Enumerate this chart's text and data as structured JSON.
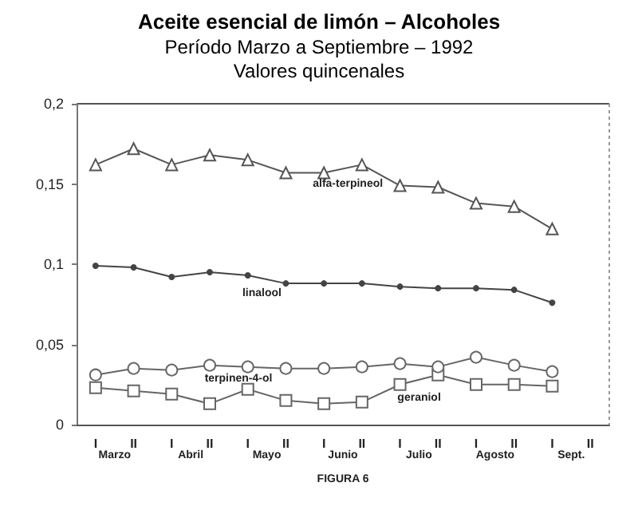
{
  "chart_data": {
    "type": "line",
    "title": "Aceite esencial de limón – Alcoholes",
    "subtitle": "Período Marzo a Septiembre – 1992\nValores quincenales",
    "categories": [
      "I",
      "II",
      "I",
      "II",
      "I",
      "II",
      "I",
      "II",
      "I",
      "II",
      "I",
      "II",
      "I",
      "II"
    ],
    "series": [
      {
        "name": "alfa-terpineol",
        "color": "#555555",
        "marker": "triangle",
        "values": [
          0.162,
          0.172,
          0.162,
          0.168,
          0.165,
          0.157,
          0.157,
          0.162,
          0.149,
          0.148,
          0.138,
          0.136,
          0.122,
          null
        ]
      },
      {
        "name": "linalool",
        "color": "#444444",
        "marker": "circle",
        "values": [
          0.099,
          0.098,
          0.092,
          0.095,
          0.093,
          0.088,
          0.088,
          0.088,
          0.086,
          0.085,
          0.085,
          0.084,
          0.076,
          null
        ]
      },
      {
        "name": "terpinen-4-ol",
        "color": "#666666",
        "marker": "circle",
        "values": [
          0.031,
          0.035,
          0.034,
          0.037,
          0.036,
          0.035,
          0.035,
          0.036,
          0.038,
          0.036,
          0.042,
          0.037,
          0.033,
          null
        ]
      },
      {
        "name": "geraniol",
        "color": "#666666",
        "marker": "square",
        "values": [
          0.023,
          0.021,
          0.019,
          0.013,
          0.022,
          0.015,
          0.013,
          0.014,
          0.025,
          0.031,
          0.025,
          0.025,
          0.024,
          null
        ]
      }
    ],
    "ylim": [
      0,
      0.2
    ],
    "yticks": [
      {
        "value": 0,
        "label": "0"
      },
      {
        "value": 0.05,
        "label": "0,05"
      },
      {
        "value": 0.1,
        "label": "0,1"
      },
      {
        "value": 0.15,
        "label": "0,15"
      },
      {
        "value": 0.2,
        "label": "0,2"
      }
    ],
    "annotations": [
      "Marzo",
      "Abril",
      "Mayo",
      "Junio",
      "Julio",
      "Agosto",
      "Sept.",
      "FIGURA 6"
    ],
    "grid": false,
    "legend": false,
    "line_style": "solid"
  }
}
